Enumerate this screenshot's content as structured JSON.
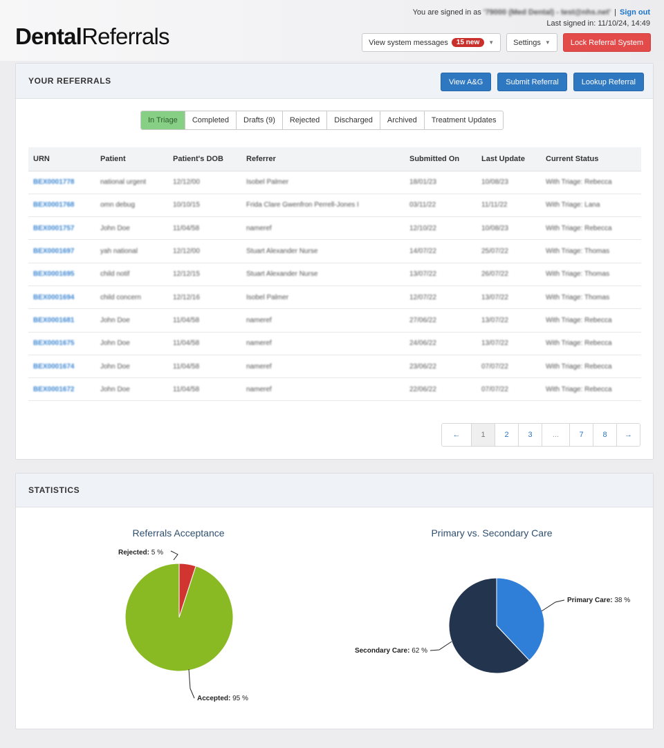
{
  "app": {
    "logo_bold": "Dental",
    "logo_regular": "Referrals"
  },
  "header": {
    "signed_in_prefix": "You are signed in as",
    "signed_in_user": "'79000 (Med Dental) - test@nhs.net'",
    "sign_out": "Sign out",
    "last_signed_in": "Last signed in: 11/10/24, 14:49",
    "system_messages_label": "View system messages",
    "system_messages_badge": "15 new",
    "settings_label": "Settings",
    "lock_label": "Lock Referral System"
  },
  "referrals": {
    "title": "YOUR REFERRALS",
    "buttons": {
      "view_ag": "View A&G",
      "submit": "Submit Referral",
      "lookup": "Lookup Referral"
    },
    "tabs": [
      "In Triage",
      "Completed",
      "Drafts (9)",
      "Rejected",
      "Discharged",
      "Archived",
      "Treatment Updates"
    ],
    "columns": [
      "URN",
      "Patient",
      "Patient's DOB",
      "Referrer",
      "Submitted On",
      "Last Update",
      "Current Status"
    ],
    "rows": [
      [
        "BEX0001778",
        "national urgent",
        "12/12/00",
        "Isobel Palmer",
        "18/01/23",
        "10/08/23",
        "With Triage: Rebecca"
      ],
      [
        "BEX0001768",
        "omn debug",
        "10/10/15",
        "Frida Clare Gwenfron Perrell-Jones I",
        "03/11/22",
        "11/11/22",
        "With Triage: Lana"
      ],
      [
        "BEX0001757",
        "John Doe",
        "11/04/58",
        "nameref",
        "12/10/22",
        "10/08/23",
        "With Triage: Rebecca"
      ],
      [
        "BEX0001697",
        "yah national",
        "12/12/00",
        "Stuart Alexander Nurse",
        "14/07/22",
        "25/07/22",
        "With Triage: Thomas"
      ],
      [
        "BEX0001695",
        "child notif",
        "12/12/15",
        "Stuart Alexander Nurse",
        "13/07/22",
        "26/07/22",
        "With Triage: Thomas"
      ],
      [
        "BEX0001694",
        "child concern",
        "12/12/16",
        "Isobel Palmer",
        "12/07/22",
        "13/07/22",
        "With Triage: Thomas"
      ],
      [
        "BEX0001681",
        "John Doe",
        "11/04/58",
        "nameref",
        "27/06/22",
        "13/07/22",
        "With Triage: Rebecca"
      ],
      [
        "BEX0001675",
        "John Doe",
        "11/04/58",
        "nameref",
        "24/06/22",
        "13/07/22",
        "With Triage: Rebecca"
      ],
      [
        "BEX0001674",
        "John Doe",
        "11/04/58",
        "nameref",
        "23/06/22",
        "07/07/22",
        "With Triage: Rebecca"
      ],
      [
        "BEX0001672",
        "John Doe",
        "11/04/58",
        "nameref",
        "22/06/22",
        "07/07/22",
        "With Triage: Rebecca"
      ]
    ],
    "pagination": [
      "←",
      "1",
      "2",
      "3",
      "...",
      "7",
      "8",
      "→"
    ],
    "current_page": "1"
  },
  "statistics": {
    "title": "STATISTICS",
    "accent_colors": {
      "accepted": "#8aba23",
      "rejected": "#d0352f",
      "primary": "#2f7ed8",
      "secondary": "#22344e"
    }
  },
  "chart_data": [
    {
      "type": "pie",
      "title": "Referrals Acceptance",
      "slices": [
        {
          "label": "Accepted",
          "value": 95,
          "display": "95 %",
          "color": "#8aba23"
        },
        {
          "label": "Rejected",
          "value": 5,
          "display": "5 %",
          "color": "#d0352f"
        }
      ]
    },
    {
      "type": "pie",
      "title": "Primary vs. Secondary Care",
      "slices": [
        {
          "label": "Primary Care",
          "value": 38,
          "display": "38 %",
          "color": "#2f7ed8"
        },
        {
          "label": "Secondary Care",
          "value": 62,
          "display": "62 %",
          "color": "#22344e"
        }
      ]
    }
  ]
}
